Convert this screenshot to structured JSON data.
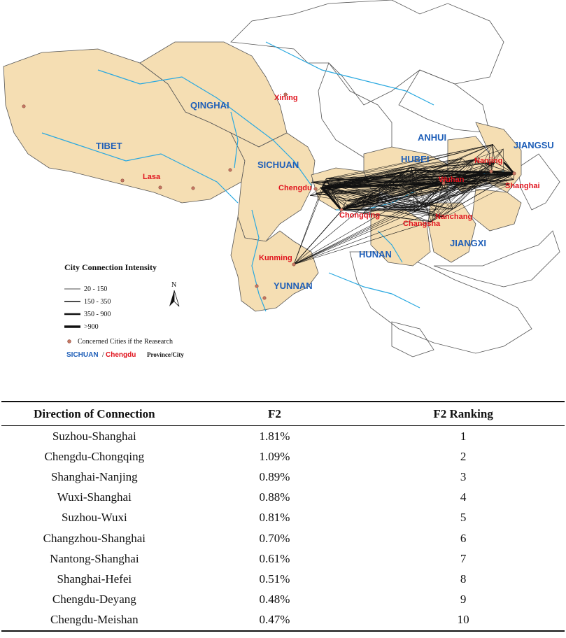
{
  "map": {
    "provinces": [
      {
        "id": "qinghai",
        "label": "QINGHAI"
      },
      {
        "id": "tibet",
        "label": "TIBET"
      },
      {
        "id": "sichuan",
        "label": "SICHUAN"
      },
      {
        "id": "yunnan",
        "label": "YUNNAN"
      },
      {
        "id": "anhui",
        "label": "ANHUI"
      },
      {
        "id": "jiangsu",
        "label": "JIANGSU"
      },
      {
        "id": "hubei",
        "label": "HUBEI"
      },
      {
        "id": "hunan",
        "label": "HUNAN"
      },
      {
        "id": "jiangxi",
        "label": "JIANGXI"
      }
    ],
    "cities": [
      {
        "id": "xining",
        "label": "Xining"
      },
      {
        "id": "lasa",
        "label": "Lasa"
      },
      {
        "id": "chengdu",
        "label": "Chengdu"
      },
      {
        "id": "chongqing",
        "label": "Chongqing"
      },
      {
        "id": "kunming",
        "label": "Kunming"
      },
      {
        "id": "wuhan",
        "label": "Wuhan"
      },
      {
        "id": "nanjing",
        "label": "Nanjing"
      },
      {
        "id": "shanghai",
        "label": "Shanghai"
      },
      {
        "id": "nanchang",
        "label": "Nanchang"
      },
      {
        "id": "changsha",
        "label": "Changsha"
      }
    ],
    "legend": {
      "title": "City Connection Intensity",
      "classes": [
        "20 - 150",
        "150 - 350",
        "350 - 900",
        ">900"
      ],
      "point_label": "Concerned Cities if the Reasearch",
      "sample_province": "SICHUAN",
      "sample_separator": "/",
      "sample_city": "Chengdu",
      "sample_caption": "Province/City",
      "north": "N"
    },
    "colors": {
      "region_fill": "#f5deb3",
      "province_text": "#1f5fb8",
      "city_text": "#e0141e",
      "river": "#29a8e0"
    }
  },
  "table": {
    "headers": [
      "Direction of Connection",
      "F2",
      "F2 Ranking"
    ],
    "rows": [
      {
        "direction": "Suzhou-Shanghai",
        "f2": "1.81%",
        "rank": "1"
      },
      {
        "direction": "Chengdu-Chongqing",
        "f2": "1.09%",
        "rank": "2"
      },
      {
        "direction": "Shanghai-Nanjing",
        "f2": "0.89%",
        "rank": "3"
      },
      {
        "direction": "Wuxi-Shanghai",
        "f2": "0.88%",
        "rank": "4"
      },
      {
        "direction": "Suzhou-Wuxi",
        "f2": "0.81%",
        "rank": "5"
      },
      {
        "direction": "Changzhou-Shanghai",
        "f2": "0.70%",
        "rank": "6"
      },
      {
        "direction": "Nantong-Shanghai",
        "f2": "0.61%",
        "rank": "7"
      },
      {
        "direction": "Shanghai-Hefei",
        "f2": "0.51%",
        "rank": "8"
      },
      {
        "direction": "Chengdu-Deyang",
        "f2": "0.48%",
        "rank": "9"
      },
      {
        "direction": "Chengdu-Meishan",
        "f2": "0.47%",
        "rank": "10"
      }
    ]
  }
}
